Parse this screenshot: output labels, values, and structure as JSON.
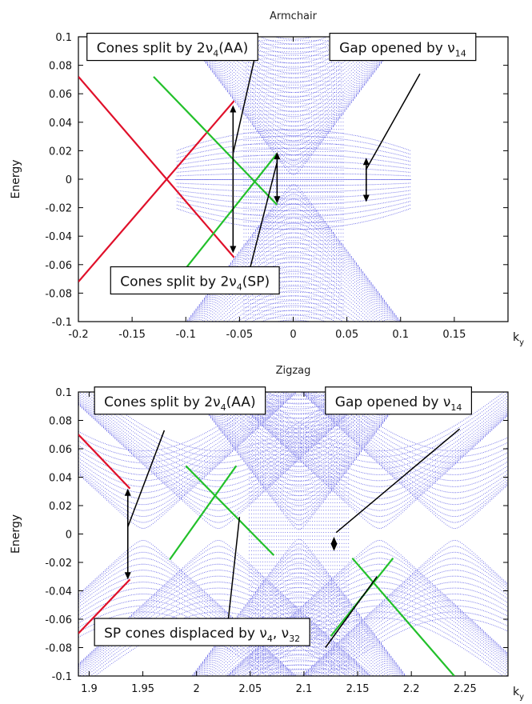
{
  "chart_data": [
    {
      "type": "scatter",
      "title": "Armchair",
      "ylabel": "Energy",
      "xlabel": "k_y",
      "xlim": [
        -0.2,
        0.2
      ],
      "ylim": [
        -0.1,
        0.1
      ],
      "xticks": [
        "-0.2",
        "-0.15",
        "-0.1",
        "-0.05",
        "0",
        "0.05",
        "0.1",
        "0.15"
      ],
      "yticks": [
        "0.1",
        "0.08",
        "0.06",
        "0.04",
        "0.02",
        "0",
        "-0.02",
        "-0.04",
        "-0.06",
        "-0.08",
        "-0.1"
      ],
      "grid": false,
      "colors": {
        "bands": "#2b2bdd",
        "red": "#e0102a",
        "green": "#22c02a",
        "arrow": "#000000"
      },
      "background_bands": {
        "center": [
          0.0,
          0.0
        ],
        "cone_slope": 1.0,
        "flat_band": [
          -0.11,
          0.11
        ],
        "gap_center": 0.065,
        "gap_half_width": 0.013
      },
      "red_lines": [
        {
          "x": [
            -0.2,
            -0.055
          ],
          "y": [
            0.072,
            -0.055
          ]
        },
        {
          "x": [
            -0.2,
            -0.055
          ],
          "y": [
            -0.072,
            0.055
          ]
        }
      ],
      "green_lines": [
        {
          "x": [
            -0.13,
            -0.015
          ],
          "y": [
            0.072,
            -0.018
          ]
        },
        {
          "x": [
            -0.11,
            -0.015
          ],
          "y": [
            -0.072,
            0.018
          ]
        }
      ],
      "double_arrows": [
        {
          "x": -0.056,
          "y1": 0.052,
          "y2": -0.052
        },
        {
          "x": -0.015,
          "y1": 0.019,
          "y2": -0.017
        },
        {
          "x": 0.068,
          "y1": 0.015,
          "y2": -0.016
        }
      ],
      "annotations": [
        {
          "text": "Cones split by 2ν",
          "sub": "4",
          "suffix": "(AA)",
          "x": -0.192,
          "y": 0.089,
          "pointer": [
            -0.035,
            0.088,
            -0.056,
            0.018
          ]
        },
        {
          "text": "Gap opened by ν",
          "sub": "14",
          "suffix": "",
          "x": 0.034,
          "y": 0.089,
          "pointer": [
            0.118,
            0.074,
            0.068,
            0.007
          ]
        },
        {
          "text": "Cones split by 2ν",
          "sub": "4",
          "suffix": "(SP)",
          "x": -0.17,
          "y": -0.075,
          "pointer": [
            -0.04,
            -0.062,
            -0.015,
            0.012
          ]
        }
      ]
    },
    {
      "type": "scatter",
      "title": "Zigzag",
      "ylabel": "Energy",
      "xlabel": "k_y",
      "xlim": [
        1.89,
        2.29
      ],
      "ylim": [
        -0.1,
        0.1
      ],
      "xticks": [
        "1.9",
        "1.95",
        "2",
        "2.05",
        "2.1",
        "2.15",
        "2.2",
        "2.25"
      ],
      "yticks": [
        "0.1",
        "0.08",
        "0.06",
        "0.04",
        "0.02",
        "0",
        "-0.02",
        "-0.04",
        "-0.06",
        "-0.08",
        "-0.1"
      ],
      "grid": false,
      "colors": {
        "bands": "#2b2bdd",
        "red": "#e0102a",
        "green": "#22c02a",
        "arrow": "#000000"
      },
      "background_bands": {
        "center": [
          2.095,
          0.0
        ],
        "cone_slope": 1.0
      },
      "red_lines": [
        {
          "x": [
            1.89,
            1.938
          ],
          "y": [
            0.07,
            0.032
          ]
        },
        {
          "x": [
            1.89,
            1.938
          ],
          "y": [
            -0.07,
            -0.032
          ]
        }
      ],
      "green_lines": [
        {
          "x": [
            1.99,
            2.072
          ],
          "y": [
            0.048,
            -0.015
          ]
        },
        {
          "x": [
            1.975,
            2.037
          ],
          "y": [
            -0.018,
            0.048
          ]
        },
        {
          "x": [
            2.145,
            2.24
          ],
          "y": [
            -0.017,
            -0.1
          ]
        },
        {
          "x": [
            2.125,
            2.183
          ],
          "y": [
            -0.072,
            -0.017
          ]
        }
      ],
      "double_arrows": [
        {
          "x": 1.936,
          "y1": 0.032,
          "y2": -0.032
        },
        {
          "x": 2.128,
          "y1": -0.002,
          "y2": -0.012
        }
      ],
      "annotations": [
        {
          "text": "Cones split by 2ν",
          "sub": "4",
          "suffix": "(AA)",
          "x": 1.905,
          "y": 0.09,
          "pointer": [
            1.97,
            0.073,
            1.936,
            0.005
          ]
        },
        {
          "text": "Gap opened by ν",
          "sub": "14",
          "suffix": "",
          "x": 2.12,
          "y": 0.09,
          "pointer": [
            2.245,
            0.074,
            2.13,
            0.001
          ]
        },
        {
          "text": "SP cones displaced by ν",
          "sub": "4",
          "suffix": ", ν",
          "sub2": "32",
          "x": 1.905,
          "y": -0.073,
          "pointer": [
            2.027,
            -0.078,
            2.04,
            0.012
          ],
          "pointer2": [
            2.12,
            -0.08,
            2.168,
            -0.03
          ]
        }
      ]
    }
  ]
}
